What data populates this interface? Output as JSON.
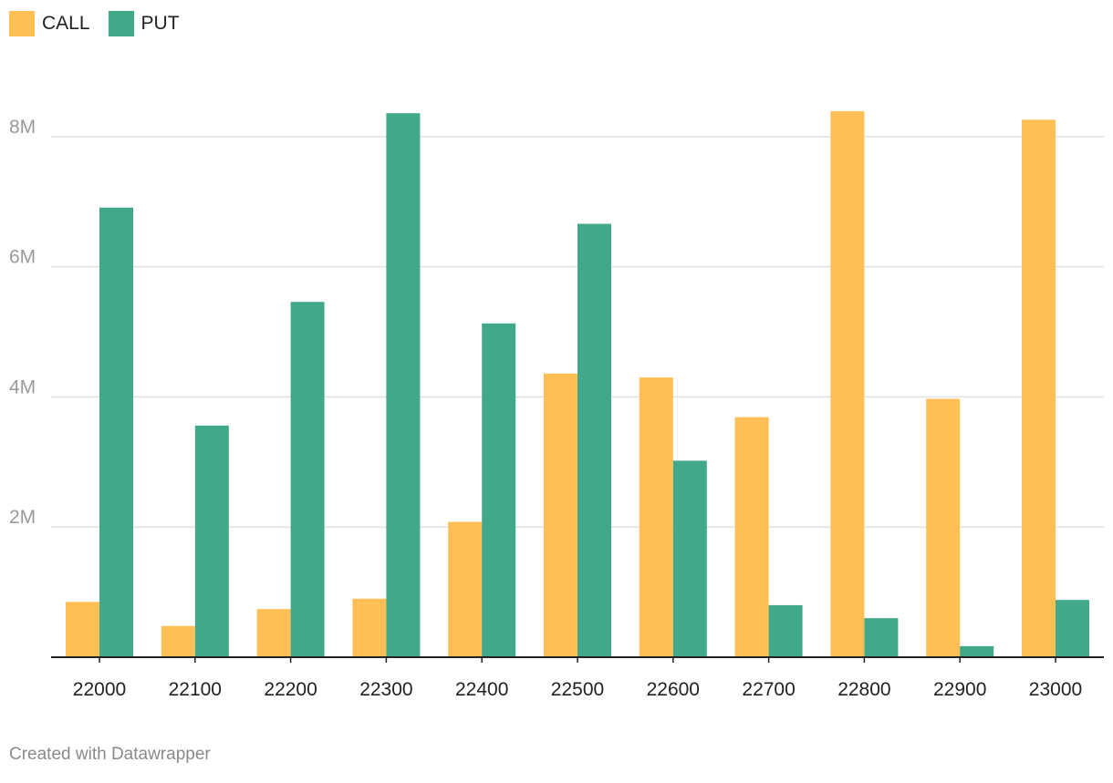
{
  "legend": {
    "items": [
      {
        "label": "CALL",
        "color": "#FFBF55"
      },
      {
        "label": "PUT",
        "color": "#42A88A"
      }
    ]
  },
  "footer": {
    "text": "Created with Datawrapper"
  },
  "chart_data": {
    "type": "bar",
    "categories": [
      "22000",
      "22100",
      "22200",
      "22300",
      "22400",
      "22500",
      "22600",
      "22700",
      "22800",
      "22900",
      "23000"
    ],
    "series": [
      {
        "name": "CALL",
        "color": "#FFBF55",
        "values": [
          850000,
          480000,
          740000,
          900000,
          2080000,
          4360000,
          4300000,
          3690000,
          8390000,
          3970000,
          8260000
        ]
      },
      {
        "name": "PUT",
        "color": "#42A88A",
        "values": [
          6910000,
          3560000,
          5460000,
          8360000,
          5130000,
          6660000,
          3020000,
          800000,
          600000,
          170000,
          880000
        ]
      }
    ],
    "ylim": [
      0,
      9000000
    ],
    "yticks": [
      2000000,
      4000000,
      6000000,
      8000000
    ],
    "ytick_labels": [
      "2M",
      "4M",
      "6M",
      "8M"
    ],
    "grid": true,
    "legend_position": "top-left",
    "xlabel": "",
    "ylabel": "",
    "title": ""
  }
}
